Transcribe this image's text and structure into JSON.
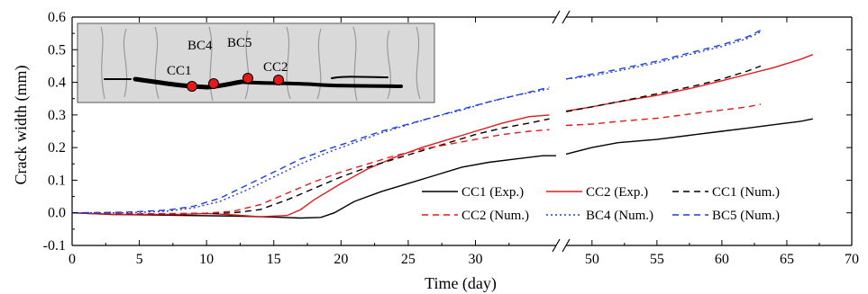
{
  "chart_data": {
    "type": "line",
    "xlabel": "Time (day)",
    "ylabel": "Crack width (mm)",
    "xlim": [
      0,
      70
    ],
    "ylim": [
      -0.1,
      0.6
    ],
    "x_axis_break": [
      36,
      48
    ],
    "x_ticks": [
      "0",
      "5",
      "10",
      "15",
      "20",
      "25",
      "30",
      "50",
      "55",
      "60",
      "65",
      "70"
    ],
    "y_ticks": [
      "-0.1",
      "0.0",
      "0.1",
      "0.2",
      "0.3",
      "0.4",
      "0.5",
      "0.6"
    ],
    "grid": false,
    "legend_placement": "lower-right",
    "series": [
      {
        "name": "CC1 (Exp.)",
        "color": "#000000",
        "style": "solid",
        "points": [
          [
            0,
            0
          ],
          [
            3,
            -0.005
          ],
          [
            8,
            -0.008
          ],
          [
            12,
            -0.01
          ],
          [
            15,
            -0.013
          ],
          [
            17,
            -0.016
          ],
          [
            18.5,
            -0.014
          ],
          [
            19.5,
            0.0
          ],
          [
            21,
            0.035
          ],
          [
            23,
            0.065
          ],
          [
            25,
            0.09
          ],
          [
            27,
            0.115
          ],
          [
            29,
            0.14
          ],
          [
            31,
            0.155
          ],
          [
            33,
            0.165
          ],
          [
            35,
            0.175
          ],
          [
            36,
            0.175
          ],
          [
            48,
            0.18
          ],
          [
            50,
            0.2
          ],
          [
            52,
            0.215
          ],
          [
            55,
            0.225
          ],
          [
            58,
            0.24
          ],
          [
            60,
            0.25
          ],
          [
            62,
            0.26
          ],
          [
            64,
            0.27
          ],
          [
            66,
            0.28
          ],
          [
            67,
            0.288
          ]
        ]
      },
      {
        "name": "CC2 (Exp.)",
        "color": "#e31a1c",
        "style": "solid",
        "points": [
          [
            0,
            0
          ],
          [
            3,
            -0.005
          ],
          [
            8,
            -0.005
          ],
          [
            10,
            -0.002
          ],
          [
            12,
            -0.006
          ],
          [
            14,
            -0.012
          ],
          [
            16,
            -0.008
          ],
          [
            17,
            0.01
          ],
          [
            18,
            0.04
          ],
          [
            20,
            0.09
          ],
          [
            22,
            0.135
          ],
          [
            24,
            0.17
          ],
          [
            26,
            0.2
          ],
          [
            28,
            0.225
          ],
          [
            30,
            0.25
          ],
          [
            32,
            0.275
          ],
          [
            34,
            0.295
          ],
          [
            35.5,
            0.3
          ],
          [
            48,
            0.312
          ],
          [
            50,
            0.325
          ],
          [
            52,
            0.34
          ],
          [
            55,
            0.36
          ],
          [
            58,
            0.385
          ],
          [
            60,
            0.405
          ],
          [
            62,
            0.425
          ],
          [
            64,
            0.445
          ],
          [
            66,
            0.47
          ],
          [
            67,
            0.485
          ]
        ]
      },
      {
        "name": "CC1 (Num.)",
        "color": "#000000",
        "style": "dashed",
        "points": [
          [
            0,
            0
          ],
          [
            5,
            -0.004
          ],
          [
            10,
            -0.002
          ],
          [
            12,
            0.0
          ],
          [
            14,
            0.01
          ],
          [
            16,
            0.04
          ],
          [
            18,
            0.075
          ],
          [
            20,
            0.11
          ],
          [
            22,
            0.14
          ],
          [
            24,
            0.165
          ],
          [
            26,
            0.19
          ],
          [
            28,
            0.215
          ],
          [
            30,
            0.24
          ],
          [
            32,
            0.26
          ],
          [
            34,
            0.275
          ],
          [
            35.5,
            0.288
          ],
          [
            48,
            0.31
          ],
          [
            50,
            0.325
          ],
          [
            52,
            0.34
          ],
          [
            55,
            0.365
          ],
          [
            58,
            0.39
          ],
          [
            60,
            0.41
          ],
          [
            62,
            0.435
          ],
          [
            63,
            0.45
          ]
        ]
      },
      {
        "name": "CC2 (Num.)",
        "color": "#e31a1c",
        "style": "dashed",
        "points": [
          [
            0,
            0
          ],
          [
            5,
            -0.003
          ],
          [
            10,
            -0.001
          ],
          [
            12,
            0.005
          ],
          [
            14,
            0.025
          ],
          [
            16,
            0.06
          ],
          [
            18,
            0.095
          ],
          [
            20,
            0.125
          ],
          [
            22,
            0.15
          ],
          [
            24,
            0.175
          ],
          [
            26,
            0.195
          ],
          [
            28,
            0.21
          ],
          [
            30,
            0.225
          ],
          [
            32,
            0.24
          ],
          [
            34,
            0.25
          ],
          [
            35.5,
            0.255
          ],
          [
            48,
            0.268
          ],
          [
            50,
            0.272
          ],
          [
            52,
            0.28
          ],
          [
            55,
            0.29
          ],
          [
            58,
            0.305
          ],
          [
            60,
            0.315
          ],
          [
            62,
            0.325
          ],
          [
            63,
            0.333
          ]
        ]
      },
      {
        "name": "BC4 (Num.)",
        "color": "#1f3fd8",
        "style": "dotted",
        "points": [
          [
            0,
            0
          ],
          [
            4,
            0.0
          ],
          [
            7,
            0.005
          ],
          [
            9,
            0.015
          ],
          [
            11,
            0.035
          ],
          [
            13,
            0.07
          ],
          [
            15,
            0.11
          ],
          [
            17,
            0.15
          ],
          [
            19,
            0.185
          ],
          [
            21,
            0.215
          ],
          [
            23,
            0.245
          ],
          [
            25,
            0.27
          ],
          [
            27,
            0.295
          ],
          [
            29,
            0.315
          ],
          [
            31,
            0.34
          ],
          [
            33,
            0.36
          ],
          [
            35.5,
            0.38
          ],
          [
            48,
            0.41
          ],
          [
            50,
            0.42
          ],
          [
            52,
            0.435
          ],
          [
            55,
            0.46
          ],
          [
            58,
            0.49
          ],
          [
            60,
            0.51
          ],
          [
            62,
            0.535
          ],
          [
            63,
            0.555
          ]
        ]
      },
      {
        "name": "BC5 (Num.)",
        "color": "#1f3fd8",
        "style": "dashed",
        "points": [
          [
            0,
            0
          ],
          [
            4,
            0.002
          ],
          [
            7,
            0.008
          ],
          [
            9,
            0.02
          ],
          [
            11,
            0.045
          ],
          [
            13,
            0.085
          ],
          [
            15,
            0.125
          ],
          [
            17,
            0.165
          ],
          [
            19,
            0.195
          ],
          [
            21,
            0.222
          ],
          [
            23,
            0.25
          ],
          [
            25,
            0.272
          ],
          [
            27,
            0.295
          ],
          [
            29,
            0.318
          ],
          [
            31,
            0.34
          ],
          [
            33,
            0.36
          ],
          [
            35.5,
            0.385
          ],
          [
            48,
            0.41
          ],
          [
            50,
            0.425
          ],
          [
            52,
            0.44
          ],
          [
            55,
            0.465
          ],
          [
            58,
            0.495
          ],
          [
            60,
            0.515
          ],
          [
            62,
            0.54
          ],
          [
            63,
            0.56
          ]
        ]
      }
    ],
    "inset": {
      "labels": [
        "BC4",
        "BC5",
        "CC1",
        "CC2"
      ]
    }
  }
}
